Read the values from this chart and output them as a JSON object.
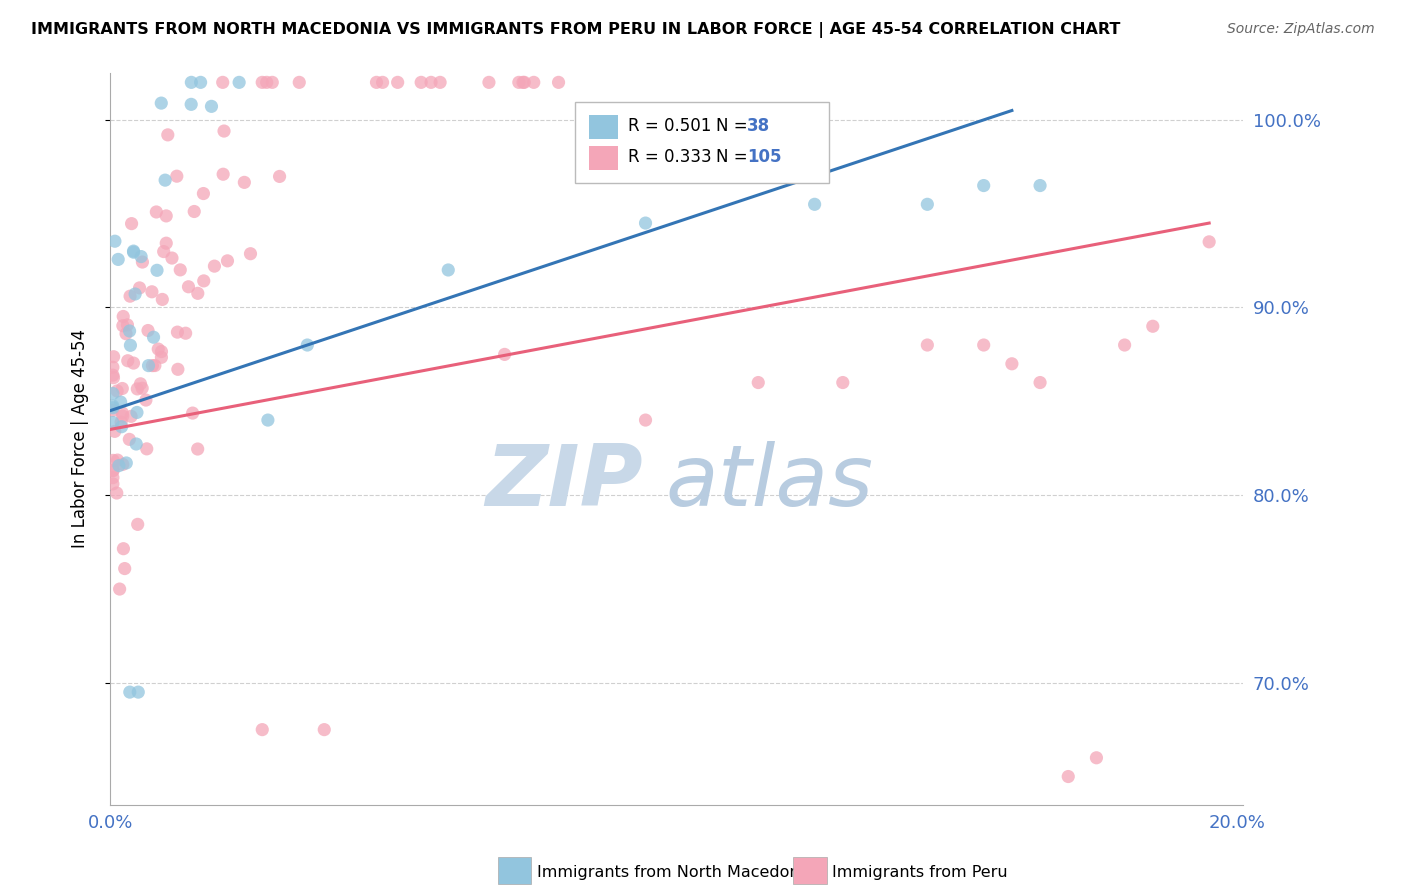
{
  "title": "IMMIGRANTS FROM NORTH MACEDONIA VS IMMIGRANTS FROM PERU IN LABOR FORCE | AGE 45-54 CORRELATION CHART",
  "source": "Source: ZipAtlas.com",
  "ylabel": "In Labor Force | Age 45-54",
  "xlim": [
    0.0,
    0.201
  ],
  "ylim": [
    0.635,
    1.025
  ],
  "yticks": [
    0.7,
    0.8,
    0.9,
    1.0
  ],
  "ytick_labels": [
    "70.0%",
    "80.0%",
    "90.0%",
    "100.0%"
  ],
  "blue_color": "#92c5de",
  "pink_color": "#f4a6b8",
  "blue_line_color": "#3475b5",
  "pink_line_color": "#e8607a",
  "legend_R_blue": "R = 0.501",
  "legend_N_blue": "38",
  "legend_R_pink": "R = 0.333",
  "legend_N_pink": "105",
  "watermark_zip": "ZIP",
  "watermark_atlas": "atlas",
  "watermark_color_zip": "#c8d8e8",
  "watermark_color_atlas": "#b8cce0",
  "blue_line_x0": 0.0,
  "blue_line_x1": 0.16,
  "blue_line_y0": 0.845,
  "blue_line_y1": 1.005,
  "pink_line_x0": 0.0,
  "pink_line_x1": 0.195,
  "pink_line_y0": 0.835,
  "pink_line_y1": 0.945,
  "grid_color": "#d0d0d0",
  "axis_color": "#aaaaaa",
  "tick_label_color": "#4472c4"
}
